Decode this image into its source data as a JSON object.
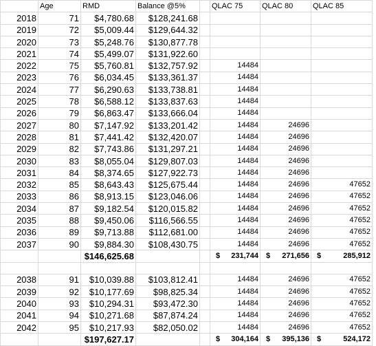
{
  "header": [
    null,
    "Age",
    "RMD",
    "Balance @5%",
    "QLAC 75",
    "QLAC 80",
    "QLAC 85"
  ],
  "sections": [
    {
      "rows": [
        [
          2018,
          71,
          "$4,780.68",
          "$128,241.68",
          null,
          null,
          null
        ],
        [
          2019,
          72,
          "$5,009.44",
          "$129,644.32",
          null,
          null,
          null
        ],
        [
          2020,
          73,
          "$5,248.76",
          "$130,877.78",
          null,
          null,
          null
        ],
        [
          2021,
          74,
          "$5,499.07",
          "$131,922.60",
          null,
          null,
          null
        ],
        [
          2022,
          75,
          "$5,760.81",
          "$132,757.92",
          14484,
          null,
          null
        ],
        [
          2023,
          76,
          "$6,034.45",
          "$133,361.37",
          14484,
          null,
          null
        ],
        [
          2024,
          77,
          "$6,290.63",
          "$133,738.81",
          14484,
          null,
          null
        ],
        [
          2025,
          78,
          "$6,588.12",
          "$133,837.63",
          14484,
          null,
          null
        ],
        [
          2026,
          79,
          "$6,863.47",
          "$133,666.04",
          14484,
          null,
          null
        ],
        [
          2027,
          80,
          "$7,147.92",
          "$133,201.42",
          14484,
          24696,
          null
        ],
        [
          2028,
          81,
          "$7,441.42",
          "$132,420.07",
          14484,
          24696,
          null
        ],
        [
          2029,
          82,
          "$7,743.86",
          "$131,297.21",
          14484,
          24696,
          null
        ],
        [
          2030,
          83,
          "$8,055.04",
          "$129,807.03",
          14484,
          24696,
          null
        ],
        [
          2031,
          84,
          "$8,374.65",
          "$127,922.73",
          14484,
          24696,
          null
        ],
        [
          2032,
          85,
          "$8,643.43",
          "$125,675.44",
          14484,
          24696,
          47652
        ],
        [
          2033,
          86,
          "$8,913.15",
          "$123,046.06",
          14484,
          24696,
          47652
        ],
        [
          2034,
          87,
          "$9,182.54",
          "$120,015.82",
          14484,
          24696,
          47652
        ],
        [
          2035,
          88,
          "$9,450.06",
          "$116,566.55",
          14484,
          24696,
          47652
        ],
        [
          2036,
          89,
          "$9,713.88",
          "$112,681.00",
          14484,
          24696,
          47652
        ],
        [
          2037,
          90,
          "$9,884.30",
          "$108,430.75",
          14484,
          24696,
          47652
        ]
      ],
      "total": {
        "rmd": "$146,625.68",
        "qlac": [
          {
            "symbol": "$",
            "amount": "231,744"
          },
          {
            "symbol": "$",
            "amount": "271,656"
          },
          {
            "symbol": "$",
            "amount": "285,912"
          }
        ]
      }
    },
    {
      "rows": [
        [
          2038,
          91,
          "$10,039.88",
          "$103,812.41",
          14484,
          24696,
          47652
        ],
        [
          2039,
          92,
          "$10,177.69",
          "$98,825.34",
          14484,
          24696,
          47652
        ],
        [
          2040,
          93,
          "$10,294.31",
          "$93,472.30",
          14484,
          24696,
          47652
        ],
        [
          2041,
          94,
          "$10,271.68",
          "$87,874.24",
          14484,
          24696,
          47652
        ],
        [
          2042,
          95,
          "$10,217.93",
          "$82,050.02",
          14484,
          24696,
          47652
        ]
      ],
      "total": {
        "rmd": "$197,627.17",
        "qlac": [
          {
            "symbol": "$",
            "amount": "304,164"
          },
          {
            "symbol": "$",
            "amount": "395,136"
          },
          {
            "symbol": "$",
            "amount": "524,172"
          }
        ]
      }
    }
  ]
}
